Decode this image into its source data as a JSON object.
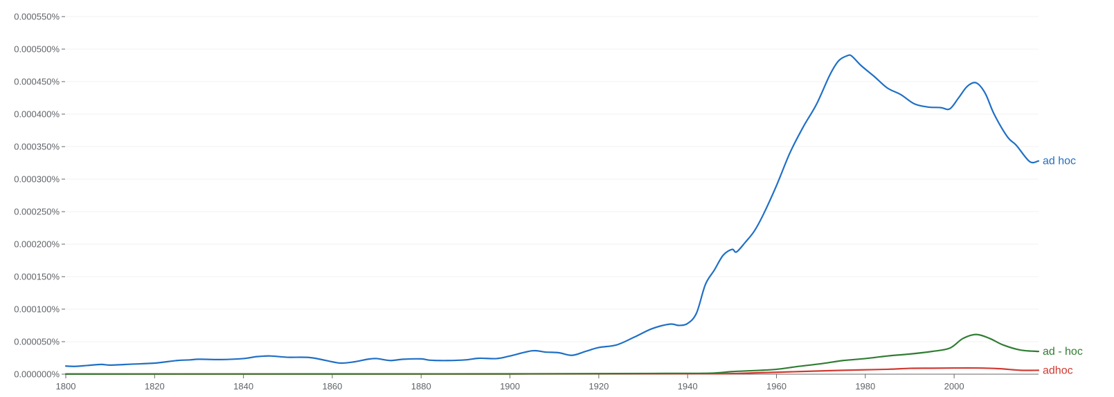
{
  "chart_data": {
    "type": "line",
    "title": "",
    "xlabel": "",
    "ylabel": "",
    "xlim": [
      1800,
      2019
    ],
    "ylim": [
      0,
      0.00055
    ],
    "grid": true,
    "x_ticks": [
      1800,
      1820,
      1840,
      1860,
      1880,
      1900,
      1920,
      1940,
      1960,
      1980,
      2000
    ],
    "x_tick_labels": [
      "1800",
      "1820",
      "1840",
      "1860",
      "1880",
      "1900",
      "1920",
      "1940",
      "1960",
      "1980",
      "2000"
    ],
    "y_ticks": [
      0,
      5e-05,
      0.0001,
      0.00015,
      0.0002,
      0.00025,
      0.0003,
      0.00035,
      0.0004,
      0.00045,
      0.0005,
      0.00055
    ],
    "y_tick_labels": [
      "0.000000%",
      "0.000050%",
      "0.000100%",
      "0.000150%",
      "0.000200%",
      "0.000250%",
      "0.000300%",
      "0.000350%",
      "0.000400%",
      "0.000450%",
      "0.000500%",
      "0.000550%"
    ],
    "series": [
      {
        "name": "ad hoc",
        "color": "#1f6fc5",
        "points": [
          [
            1800,
            1.25e-05
          ],
          [
            1802,
            1.2e-05
          ],
          [
            1805,
            1.35e-05
          ],
          [
            1808,
            1.5e-05
          ],
          [
            1810,
            1.4e-05
          ],
          [
            1815,
            1.55e-05
          ],
          [
            1820,
            1.7e-05
          ],
          [
            1825,
            2.1e-05
          ],
          [
            1828,
            2.2e-05
          ],
          [
            1830,
            2.3e-05
          ],
          [
            1835,
            2.25e-05
          ],
          [
            1840,
            2.4e-05
          ],
          [
            1843,
            2.7e-05
          ],
          [
            1846,
            2.8e-05
          ],
          [
            1850,
            2.6e-05
          ],
          [
            1855,
            2.55e-05
          ],
          [
            1860,
            1.9e-05
          ],
          [
            1862,
            1.7e-05
          ],
          [
            1865,
            1.9e-05
          ],
          [
            1868,
            2.3e-05
          ],
          [
            1870,
            2.4e-05
          ],
          [
            1873,
            2.1e-05
          ],
          [
            1876,
            2.3e-05
          ],
          [
            1880,
            2.35e-05
          ],
          [
            1882,
            2.15e-05
          ],
          [
            1886,
            2.1e-05
          ],
          [
            1890,
            2.2e-05
          ],
          [
            1893,
            2.45e-05
          ],
          [
            1897,
            2.4e-05
          ],
          [
            1900,
            2.8e-05
          ],
          [
            1905,
            3.6e-05
          ],
          [
            1908,
            3.4e-05
          ],
          [
            1911,
            3.3e-05
          ],
          [
            1914,
            2.9e-05
          ],
          [
            1917,
            3.5e-05
          ],
          [
            1920,
            4.1e-05
          ],
          [
            1924,
            4.5e-05
          ],
          [
            1928,
            5.7e-05
          ],
          [
            1932,
            7e-05
          ],
          [
            1936,
            7.7e-05
          ],
          [
            1938,
            7.5e-05
          ],
          [
            1940,
            7.8e-05
          ],
          [
            1942,
            9.4e-05
          ],
          [
            1944,
            0.000138
          ],
          [
            1946,
            0.00016
          ],
          [
            1948,
            0.000183
          ],
          [
            1950,
            0.000192
          ],
          [
            1951,
            0.000188
          ],
          [
            1953,
            0.000203
          ],
          [
            1955,
            0.00022
          ],
          [
            1957,
            0.000245
          ],
          [
            1960,
            0.00029
          ],
          [
            1963,
            0.00034
          ],
          [
            1966,
            0.00038
          ],
          [
            1969,
            0.000415
          ],
          [
            1972,
            0.00046
          ],
          [
            1974,
            0.000482
          ],
          [
            1976,
            0.00049
          ],
          [
            1977,
            0.000489
          ],
          [
            1979,
            0.000475
          ],
          [
            1982,
            0.000458
          ],
          [
            1985,
            0.00044
          ],
          [
            1988,
            0.00043
          ],
          [
            1991,
            0.000416
          ],
          [
            1994,
            0.000411
          ],
          [
            1997,
            0.00041
          ],
          [
            1999,
            0.000408
          ],
          [
            2001,
            0.000425
          ],
          [
            2003,
            0.000443
          ],
          [
            2005,
            0.000448
          ],
          [
            2007,
            0.000432
          ],
          [
            2009,
            0.0004
          ],
          [
            2012,
            0.000365
          ],
          [
            2014,
            0.000352
          ],
          [
            2017,
            0.000327
          ],
          [
            2019,
            0.000328
          ]
        ]
      },
      {
        "name": "ad - hoc",
        "color": "#2f7d32",
        "points": [
          [
            1800,
            3e-07
          ],
          [
            1900,
            5e-07
          ],
          [
            1935,
            1.2e-06
          ],
          [
            1945,
            1.5e-06
          ],
          [
            1950,
            4e-06
          ],
          [
            1955,
            5.5e-06
          ],
          [
            1960,
            7.5e-06
          ],
          [
            1965,
            1.2e-05
          ],
          [
            1970,
            1.6e-05
          ],
          [
            1975,
            2.1e-05
          ],
          [
            1980,
            2.4e-05
          ],
          [
            1985,
            2.8e-05
          ],
          [
            1990,
            3.1e-05
          ],
          [
            1995,
            3.5e-05
          ],
          [
            1999,
            4e-05
          ],
          [
            2002,
            5.5e-05
          ],
          [
            2005,
            6.1e-05
          ],
          [
            2008,
            5.5e-05
          ],
          [
            2011,
            4.5e-05
          ],
          [
            2015,
            3.7e-05
          ],
          [
            2019,
            3.5e-05
          ]
        ]
      },
      {
        "name": "adhoc",
        "color": "#d03a32",
        "points": [
          [
            1800,
            2e-07
          ],
          [
            1900,
            3e-07
          ],
          [
            1945,
            6e-07
          ],
          [
            1955,
            2e-06
          ],
          [
            1965,
            4e-06
          ],
          [
            1975,
            6e-06
          ],
          [
            1985,
            7.5e-06
          ],
          [
            1990,
            9e-06
          ],
          [
            1995,
            9.2e-06
          ],
          [
            2000,
            9.5e-06
          ],
          [
            2005,
            9.5e-06
          ],
          [
            2010,
            8.5e-06
          ],
          [
            2015,
            6e-06
          ],
          [
            2019,
            6e-06
          ]
        ]
      }
    ]
  }
}
